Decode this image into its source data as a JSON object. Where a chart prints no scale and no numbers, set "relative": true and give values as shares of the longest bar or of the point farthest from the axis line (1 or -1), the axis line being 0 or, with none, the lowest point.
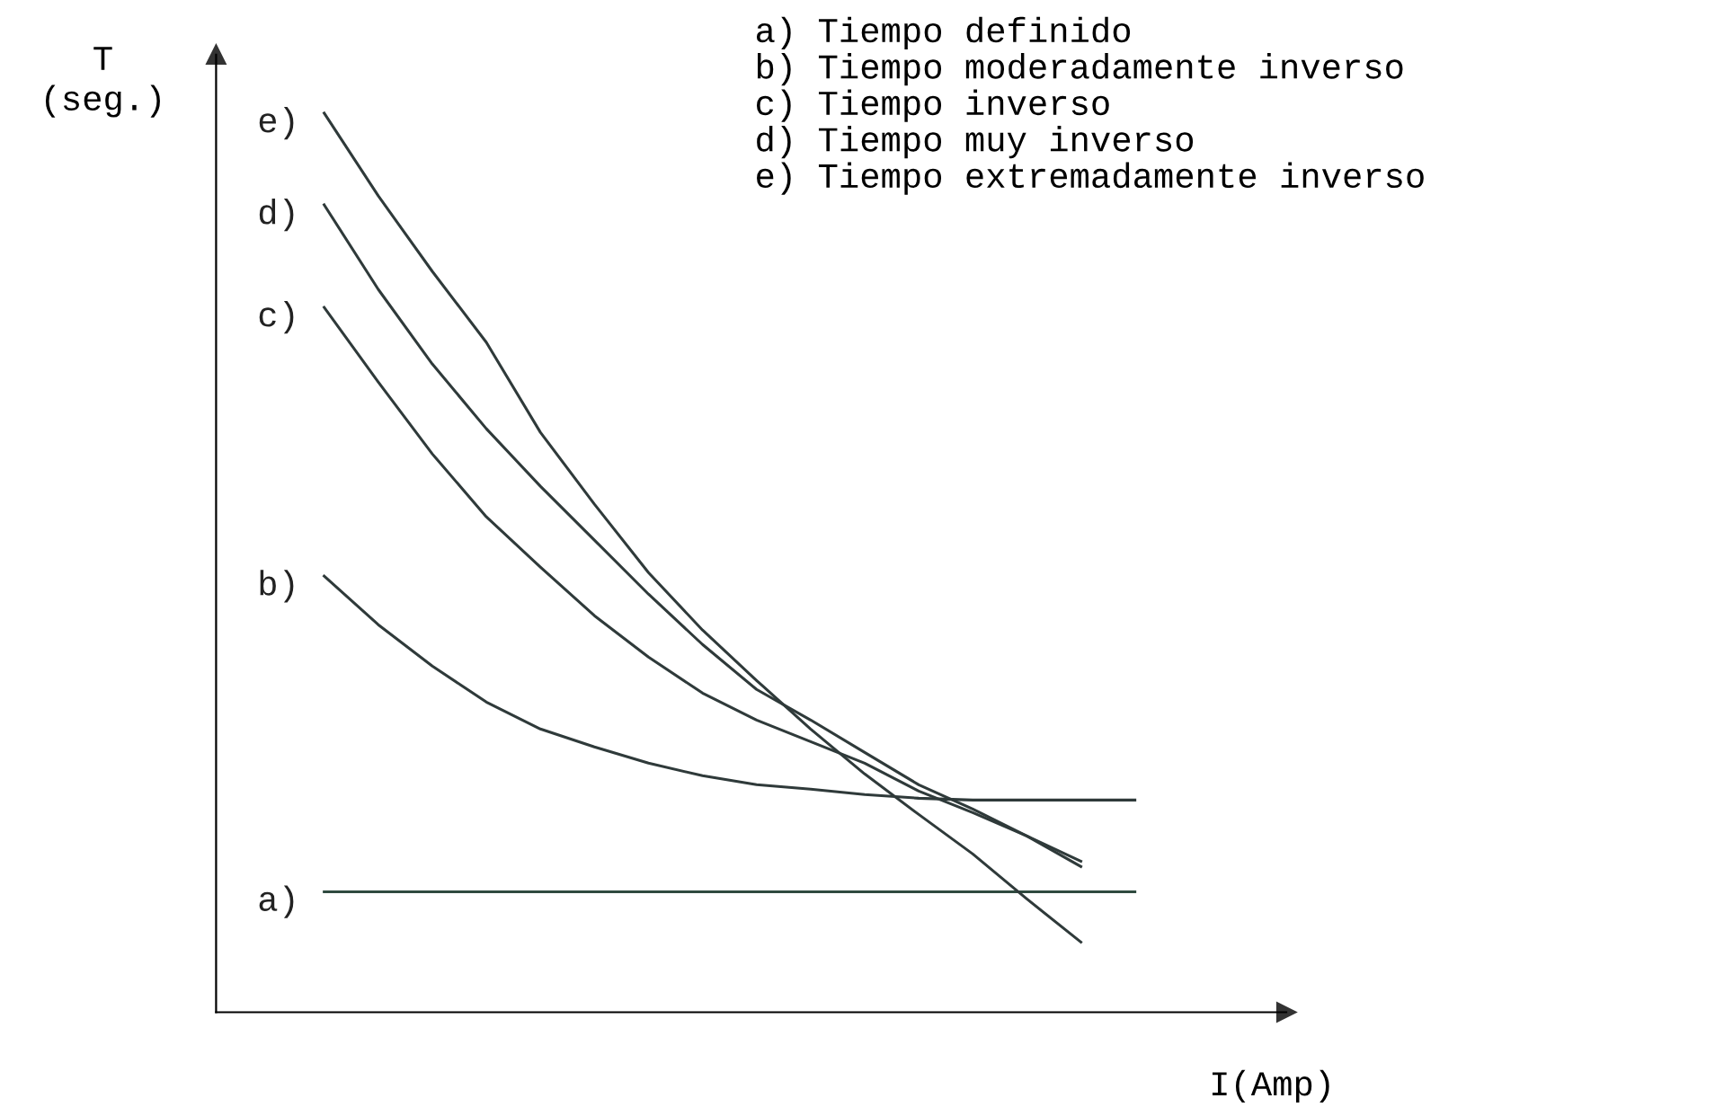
{
  "chart_data": {
    "type": "line",
    "relative": true,
    "xlabel": "I(Amp)",
    "ylabel": "T\n(seg.)",
    "marker": "none",
    "line_style": "solid",
    "categories": [
      null,
      null,
      null,
      null,
      null,
      null,
      null,
      null,
      null,
      null,
      null,
      null,
      null,
      null,
      null,
      null
    ],
    "annotations": [
      "a) Tiempo definido",
      "b) Tiempo moderadamente inverso",
      "c) Tiempo inverso",
      "d) Tiempo muy inverso",
      "e) Tiempo extremadamente inverso"
    ],
    "series": [
      {
        "name": "a)",
        "color": "#2f4a3f",
        "values": [
          0.134,
          0.134,
          0.134,
          0.134,
          0.134,
          0.134,
          0.134,
          0.134,
          0.134,
          0.134,
          0.134,
          0.134,
          0.134,
          0.134,
          0.134,
          0.134
        ]
      },
      {
        "name": "b)",
        "color": "#2f3a3a",
        "values": [
          0.485,
          0.431,
          0.385,
          0.345,
          0.315,
          0.295,
          0.277,
          0.263,
          0.253,
          0.248,
          0.242,
          0.238,
          0.236,
          0.236,
          0.236,
          0.236
        ]
      },
      {
        "name": "c)",
        "color": "#2f3a3a",
        "values": [
          0.784,
          0.701,
          0.621,
          0.551,
          0.495,
          0.441,
          0.395,
          0.355,
          0.325,
          0.301,
          0.277,
          0.246,
          0.222,
          0.196,
          0.162,
          null
        ]
      },
      {
        "name": "d)",
        "color": "#2f3a3a",
        "values": [
          0.898,
          0.804,
          0.721,
          0.649,
          0.585,
          0.525,
          0.465,
          0.409,
          0.359,
          0.325,
          0.289,
          0.253,
          0.226,
          0.196,
          0.168,
          null
        ]
      },
      {
        "name": "e)",
        "color": "#2f3a3a",
        "values": [
          1.0,
          0.908,
          0.824,
          0.745,
          0.645,
          0.565,
          0.489,
          0.425,
          0.369,
          0.315,
          0.265,
          0.22,
          0.176,
          0.126,
          0.078,
          null
        ]
      }
    ]
  }
}
